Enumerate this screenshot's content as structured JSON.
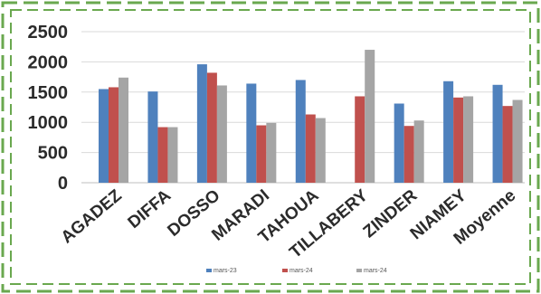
{
  "chart_data": {
    "type": "bar",
    "title": "",
    "xlabel": "",
    "ylabel": "",
    "categories": [
      "AGADEZ",
      "DIFFA",
      "DOSSO",
      "MARADI",
      "TAHOUA",
      "TILLABERY",
      "ZINDER",
      "NIAMEY",
      "Moyenne"
    ],
    "series": [
      {
        "name": "mars-23",
        "color": "#4f81bd",
        "values": [
          1550,
          1510,
          1960,
          1640,
          1700,
          null,
          1310,
          1680,
          1620
        ]
      },
      {
        "name": "mars-24",
        "color": "#c0504d",
        "values": [
          1580,
          920,
          1820,
          950,
          1130,
          1430,
          940,
          1410,
          1270
        ]
      },
      {
        "name": "mars-24",
        "color": "#a5a5a5",
        "values": [
          1740,
          920,
          1610,
          990,
          1070,
          2200,
          1030,
          1430,
          1370
        ]
      }
    ],
    "ylim": [
      0,
      2500
    ],
    "yticks": [
      "0",
      "500",
      "1000",
      "1500",
      "2000",
      "2500"
    ],
    "grid": true,
    "legend_position": "bottom",
    "border": "green dashed frame"
  },
  "colors": {
    "frame": "#6aa84f",
    "grid": "#d9d9d9",
    "axis": "#bfbfbf"
  }
}
